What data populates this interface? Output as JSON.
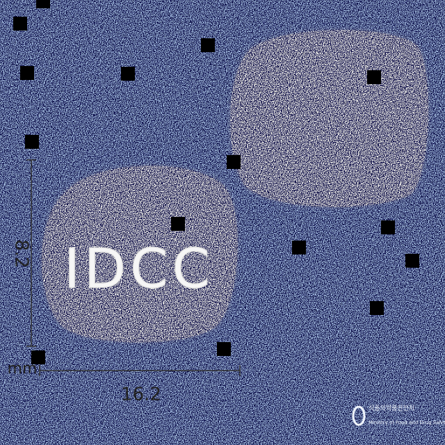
{
  "measurements": {
    "height": "8.2",
    "width": "16.2",
    "unit": "mm"
  },
  "imprint": "IDCC",
  "watermark": {
    "korean": "식품의약품안전처",
    "english": "Ministry of Food and Drug Safety"
  }
}
